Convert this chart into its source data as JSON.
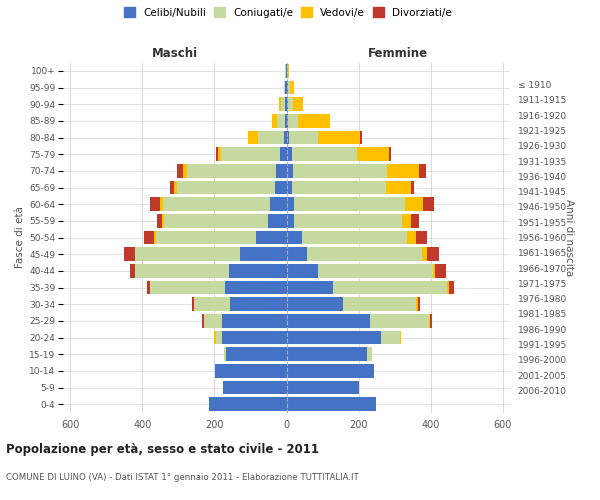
{
  "age_groups": [
    "0-4",
    "5-9",
    "10-14",
    "15-19",
    "20-24",
    "25-29",
    "30-34",
    "35-39",
    "40-44",
    "45-49",
    "50-54",
    "55-59",
    "60-64",
    "65-69",
    "70-74",
    "75-79",
    "80-84",
    "85-89",
    "90-94",
    "95-99",
    "100+"
  ],
  "birth_years": [
    "2006-2010",
    "2001-2005",
    "1996-2000",
    "1991-1995",
    "1986-1990",
    "1981-1985",
    "1976-1980",
    "1971-1975",
    "1966-1970",
    "1961-1965",
    "1956-1960",
    "1951-1955",
    "1946-1950",
    "1941-1945",
    "1936-1940",
    "1931-1935",
    "1926-1930",
    "1921-1925",
    "1916-1920",
    "1911-1915",
    "≤ 1910"
  ],
  "males": {
    "celibi": [
      215,
      175,
      198,
      168,
      178,
      178,
      158,
      170,
      160,
      130,
      85,
      52,
      45,
      32,
      28,
      18,
      8,
      5,
      5,
      3,
      2
    ],
    "coniugati": [
      0,
      0,
      0,
      4,
      18,
      52,
      98,
      208,
      260,
      290,
      278,
      288,
      298,
      272,
      248,
      165,
      70,
      22,
      10,
      4,
      2
    ],
    "vedovi": [
      0,
      0,
      0,
      0,
      4,
      0,
      0,
      0,
      0,
      0,
      5,
      5,
      8,
      8,
      12,
      8,
      28,
      12,
      5,
      0,
      0
    ],
    "divorziati": [
      0,
      0,
      0,
      0,
      0,
      5,
      5,
      10,
      15,
      30,
      28,
      14,
      28,
      10,
      15,
      5,
      0,
      0,
      0,
      0,
      0
    ]
  },
  "females": {
    "nubili": [
      248,
      200,
      242,
      222,
      262,
      232,
      158,
      128,
      88,
      58,
      42,
      22,
      22,
      14,
      18,
      14,
      8,
      5,
      5,
      5,
      2
    ],
    "coniugate": [
      0,
      0,
      0,
      14,
      52,
      162,
      202,
      318,
      318,
      318,
      292,
      298,
      308,
      262,
      262,
      182,
      78,
      28,
      14,
      5,
      2
    ],
    "vedove": [
      0,
      0,
      0,
      0,
      5,
      5,
      5,
      5,
      5,
      14,
      24,
      24,
      48,
      68,
      88,
      88,
      118,
      88,
      28,
      10,
      3
    ],
    "divorziate": [
      0,
      0,
      0,
      0,
      0,
      5,
      5,
      14,
      32,
      32,
      32,
      24,
      32,
      10,
      18,
      5,
      5,
      0,
      0,
      0,
      0
    ]
  },
  "colors": {
    "celibi": "#4472c4",
    "coniugati": "#c5d9a0",
    "vedovi": "#ffc000",
    "divorziati": "#c0392b"
  },
  "legend_labels": [
    "Celibi/Nubili",
    "Coniugati/e",
    "Vedovi/e",
    "Divorziati/e"
  ],
  "xlim": 620,
  "title": "Popolazione per età, sesso e stato civile - 2011",
  "subtitle": "COMUNE DI LUINO (VA) - Dati ISTAT 1° gennaio 2011 - Elaborazione TUTTITALIA.IT",
  "xlabel_left": "Maschi",
  "xlabel_right": "Femmine",
  "ylabel_left": "Fasce di età",
  "ylabel_right": "Anni di nascita",
  "bg_color": "#ffffff",
  "grid_color": "#cccccc",
  "text_color": "#555555",
  "title_color": "#222222",
  "header_color": "#333333"
}
